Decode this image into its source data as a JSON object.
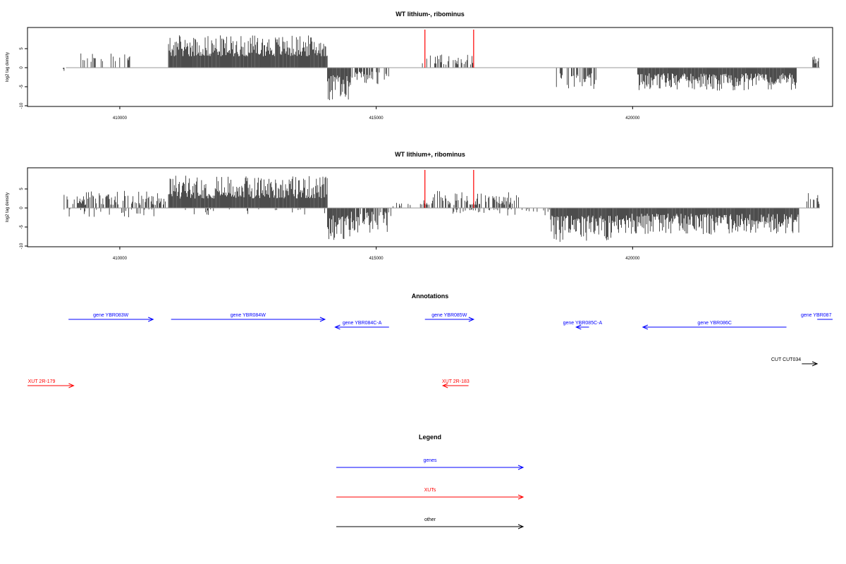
{
  "colors": {
    "gene": "#0000ff",
    "xut": "#ff0000",
    "other": "#000000",
    "marker": "#ff0000",
    "baseline": "#999999",
    "bars": "#000000"
  },
  "chart_data": [
    {
      "type": "bar",
      "title": "WT lithium-, ribominus",
      "ylabel": "log2 tag density",
      "xlim": [
        408200,
        423900
      ],
      "ylim": [
        -10,
        10
      ],
      "yticks": [
        -10,
        -5,
        0,
        5
      ],
      "xticks": [
        410000,
        415000,
        420000
      ],
      "markers": [
        415950,
        416900
      ],
      "regions": [
        {
          "start": 408900,
          "end": 409000,
          "sign": -1,
          "min": 0.3,
          "max": 1.2,
          "density": 0.3
        },
        {
          "start": 409200,
          "end": 410200,
          "sign": 1,
          "min": 1.5,
          "max": 4.0,
          "density": 0.25
        },
        {
          "start": 410400,
          "end": 410600,
          "sign": 1,
          "min": 1.0,
          "max": 2.5,
          "density": 0.3
        },
        {
          "start": 410950,
          "end": 414050,
          "sign": 1,
          "min": 3.0,
          "max": 8.5,
          "density": 1.0
        },
        {
          "start": 414050,
          "end": 414500,
          "sign": -1,
          "min": 2.0,
          "max": 9.0,
          "density": 1.0
        },
        {
          "start": 414500,
          "end": 415300,
          "sign": -1,
          "min": 1.0,
          "max": 4.5,
          "density": 0.6
        },
        {
          "start": 415900,
          "end": 416950,
          "sign": 1,
          "min": 0.8,
          "max": 3.8,
          "density": 0.35
        },
        {
          "start": 418500,
          "end": 419300,
          "sign": -1,
          "min": 1.5,
          "max": 6.0,
          "density": 0.6
        },
        {
          "start": 419900,
          "end": 419950,
          "sign": 1,
          "min": 2.0,
          "max": 2.5,
          "density": 0.5
        },
        {
          "start": 420100,
          "end": 423200,
          "sign": -1,
          "min": 1.5,
          "max": 6.0,
          "density": 1.0
        },
        {
          "start": 423500,
          "end": 423650,
          "sign": 1,
          "min": 1.0,
          "max": 3.5,
          "density": 0.4
        }
      ]
    },
    {
      "type": "bar",
      "title": "WT lithium+, ribominus",
      "ylabel": "log2 tag density",
      "xlim": [
        408200,
        423900
      ],
      "ylim": [
        -10,
        10
      ],
      "yticks": [
        -10,
        -5,
        0,
        5
      ],
      "xticks": [
        410000,
        415000,
        420000
      ],
      "markers": [
        415950,
        416900
      ],
      "regions": [
        {
          "start": 408900,
          "end": 410900,
          "sign": 1,
          "min": 0.8,
          "max": 4.5,
          "density": 0.5
        },
        {
          "start": 408900,
          "end": 410900,
          "sign": -1,
          "min": 0.3,
          "max": 2.5,
          "density": 0.15
        },
        {
          "start": 410950,
          "end": 414050,
          "sign": 1,
          "min": 2.5,
          "max": 8.5,
          "density": 1.0
        },
        {
          "start": 411000,
          "end": 414000,
          "sign": -1,
          "min": 0.3,
          "max": 2.0,
          "density": 0.1
        },
        {
          "start": 414050,
          "end": 414500,
          "sign": -1,
          "min": 2.0,
          "max": 9.0,
          "density": 1.0
        },
        {
          "start": 414500,
          "end": 415300,
          "sign": -1,
          "min": 1.0,
          "max": 7.0,
          "density": 0.7
        },
        {
          "start": 415300,
          "end": 415900,
          "sign": 1,
          "min": 0.3,
          "max": 1.5,
          "density": 0.2
        },
        {
          "start": 415900,
          "end": 417800,
          "sign": 1,
          "min": 0.8,
          "max": 4.5,
          "density": 0.5
        },
        {
          "start": 416500,
          "end": 418400,
          "sign": -1,
          "min": 0.3,
          "max": 2.0,
          "density": 0.2
        },
        {
          "start": 418400,
          "end": 419600,
          "sign": -1,
          "min": 2.0,
          "max": 9.0,
          "density": 1.0
        },
        {
          "start": 419600,
          "end": 423250,
          "sign": -1,
          "min": 1.5,
          "max": 7.0,
          "density": 1.0
        },
        {
          "start": 423400,
          "end": 423650,
          "sign": 1,
          "min": 1.0,
          "max": 4.0,
          "density": 0.5
        }
      ]
    }
  ],
  "annotations": {
    "title": "Annotations",
    "items": [
      {
        "label": "gene YBR083W",
        "type": "gene",
        "start": 409000,
        "end": 410650,
        "strand": "+",
        "row": 0
      },
      {
        "label": "gene YBR084W",
        "type": "gene",
        "start": 411000,
        "end": 414000,
        "strand": "+",
        "row": 0
      },
      {
        "label": "gene YBR084C-A",
        "type": "gene",
        "start": 414200,
        "end": 415250,
        "strand": "-",
        "row": 1
      },
      {
        "label": "gene YBR085W",
        "type": "gene",
        "start": 415950,
        "end": 416900,
        "strand": "+",
        "row": 0
      },
      {
        "label": "gene YBR085C-A",
        "type": "gene",
        "start": 418900,
        "end": 419150,
        "strand": "-",
        "row": 1
      },
      {
        "label": "gene YBR086C",
        "type": "gene",
        "start": 420200,
        "end": 423000,
        "strand": "-",
        "row": 1
      },
      {
        "label": "gene YBR087",
        "type": "gene",
        "start": 423600,
        "end": 424000,
        "strand": "+",
        "row": 0
      },
      {
        "label": "CUT CUT034",
        "type": "other",
        "start": 423300,
        "end": 423600,
        "strand": "+",
        "row": 2
      },
      {
        "label": "XUT 2R-179",
        "type": "xut",
        "start": 408200,
        "end": 409100,
        "strand": "+",
        "row": 3
      },
      {
        "label": "XUT 2R-183",
        "type": "xut",
        "start": 416300,
        "end": 416800,
        "strand": "-",
        "row": 3
      }
    ]
  },
  "legend": {
    "title": "Legend",
    "items": [
      {
        "label": "genes",
        "type": "gene"
      },
      {
        "label": "XUTs",
        "type": "xut"
      },
      {
        "label": "other",
        "type": "other"
      }
    ]
  }
}
